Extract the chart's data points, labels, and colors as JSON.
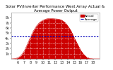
{
  "title": "Solar PV/Inverter Performance West Array Actual & Average Power Output",
  "background_color": "#ffffff",
  "plot_background": "#ffffff",
  "fill_color": "#cc0000",
  "line_color": "#cc0000",
  "avg_line_color": "#0000bb",
  "grid_color": "#bbbbbb",
  "title_color": "#000000",
  "hours": [
    5,
    5.5,
    6,
    6.5,
    7,
    7.5,
    8,
    8.5,
    9,
    9.5,
    10,
    10.5,
    11,
    11.5,
    12,
    12.5,
    13,
    13.5,
    14,
    14.5,
    15,
    15.5,
    16,
    16.5,
    17,
    17.5,
    18,
    18.5,
    19
  ],
  "power": [
    0,
    30,
    180,
    550,
    1400,
    2700,
    4100,
    5400,
    6400,
    7100,
    7500,
    7750,
    7850,
    7820,
    7780,
    7730,
    7550,
    7100,
    6400,
    5400,
    4100,
    2900,
    1700,
    850,
    280,
    60,
    5,
    0,
    0
  ],
  "avg_power": 4300,
  "ylim": [
    0,
    9000
  ],
  "xlim": [
    5,
    19
  ],
  "xtick_vals": [
    6,
    7,
    8,
    9,
    10,
    11,
    12,
    13,
    14,
    15,
    16,
    17,
    18
  ],
  "xtick_labels": [
    "6",
    "7",
    "8",
    "9",
    "10",
    "11",
    "12",
    "13",
    "14",
    "15",
    "16",
    "17",
    "18"
  ],
  "ytick_vals": [
    1000,
    2000,
    3000,
    4000,
    5000,
    6000,
    7000,
    8000
  ],
  "ytick_labels": [
    "1k",
    "2k",
    "3k",
    "4k",
    "5k",
    "6k",
    "7k",
    "8k"
  ],
  "tick_fontsize": 3.5,
  "title_fontsize": 4.0,
  "legend_fontsize": 3.2
}
